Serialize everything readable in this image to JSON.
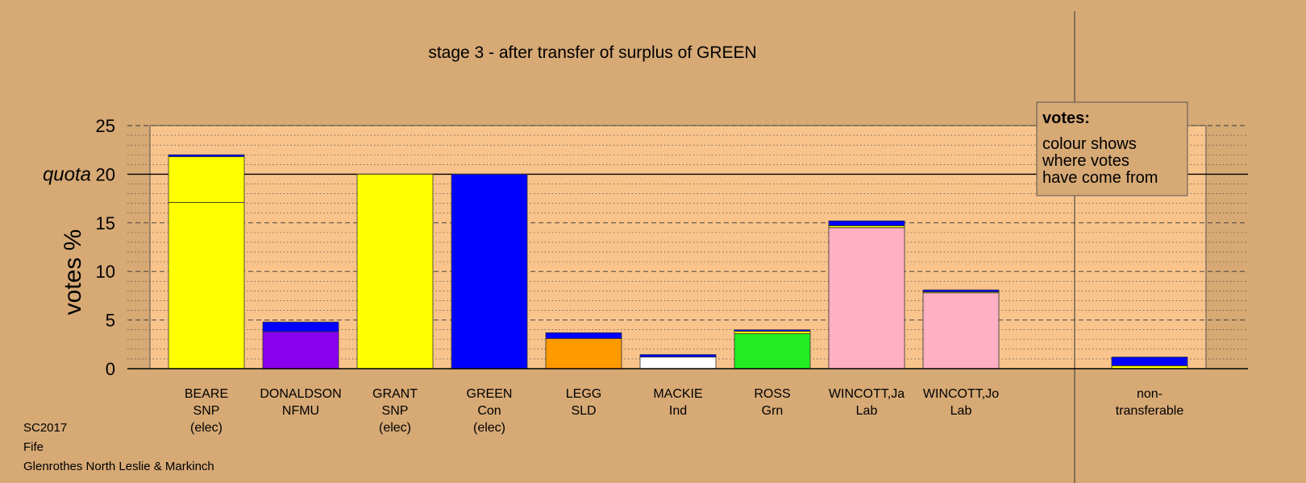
{
  "chart_data": {
    "type": "bar",
    "stacked": true,
    "title": "stage 3 - after transfer of surplus of GREEN",
    "ylabel": "votes %",
    "quota_label": "quota",
    "quota": 20,
    "ylim": [
      0,
      25
    ],
    "yticks": [
      0,
      5,
      10,
      15,
      20,
      25
    ],
    "grid": true,
    "categories": [
      {
        "name": "BEARE",
        "party": "SNP",
        "status": "(elec)"
      },
      {
        "name": "DONALDSON",
        "party": "NFMU",
        "status": ""
      },
      {
        "name": "GRANT",
        "party": "SNP",
        "status": "(elec)"
      },
      {
        "name": "GREEN",
        "party": "Con",
        "status": "(elec)"
      },
      {
        "name": "LEGG",
        "party": "SLD",
        "status": ""
      },
      {
        "name": "MACKIE",
        "party": "Ind",
        "status": ""
      },
      {
        "name": "ROSS",
        "party": "Grn",
        "status": ""
      },
      {
        "name": "WINCOTT,Ja",
        "party": "Lab",
        "status": ""
      },
      {
        "name": "WINCOTT,Jo",
        "party": "Lab",
        "status": ""
      }
    ],
    "bars": [
      {
        "segments": [
          {
            "value": 17.1,
            "color": "#ffff00"
          },
          {
            "value": 4.7,
            "color": "#ffff00"
          },
          {
            "value": 0.2,
            "color": "#0000ff"
          }
        ]
      },
      {
        "segments": [
          {
            "value": 3.8,
            "color": "#8800ee"
          },
          {
            "value": 1.0,
            "color": "#0000ff"
          }
        ]
      },
      {
        "segments": [
          {
            "value": 20.0,
            "color": "#ffff00"
          }
        ]
      },
      {
        "segments": [
          {
            "value": 20.0,
            "color": "#0000ff"
          }
        ]
      },
      {
        "segments": [
          {
            "value": 3.1,
            "color": "#ff9900"
          },
          {
            "value": 0.6,
            "color": "#0000ff"
          }
        ]
      },
      {
        "segments": [
          {
            "value": 1.2,
            "color": "#ffffff"
          },
          {
            "value": 0.25,
            "color": "#0000ff"
          }
        ]
      },
      {
        "segments": [
          {
            "value": 3.6,
            "color": "#22ee22"
          },
          {
            "value": 0.25,
            "color": "#ffff00"
          },
          {
            "value": 0.15,
            "color": "#0000ff"
          }
        ]
      },
      {
        "segments": [
          {
            "value": 14.5,
            "color": "#ffb0c4"
          },
          {
            "value": 0.2,
            "color": "#ffff00"
          },
          {
            "value": 0.5,
            "color": "#0000ff"
          }
        ]
      },
      {
        "segments": [
          {
            "value": 7.8,
            "color": "#ffb0c4"
          },
          {
            "value": 0.1,
            "color": "#ffff00"
          },
          {
            "value": 0.2,
            "color": "#0000ff"
          }
        ]
      }
    ],
    "nontransferable": {
      "label_line1": "non-",
      "label_line2": "transferable",
      "segments": [
        {
          "value": 0.3,
          "color": "#ffff00"
        },
        {
          "value": 0.9,
          "color": "#0000ff"
        }
      ]
    },
    "legend": {
      "title": "votes:",
      "lines": [
        "colour shows",
        "where votes",
        "have come from"
      ],
      "placement": "top-right"
    },
    "footer": [
      "SC2017",
      "Fife",
      "Glenrothes North Leslie & Markinch"
    ],
    "colors": {
      "background": "#d6a975",
      "plot_area": "#f8c48c"
    }
  }
}
